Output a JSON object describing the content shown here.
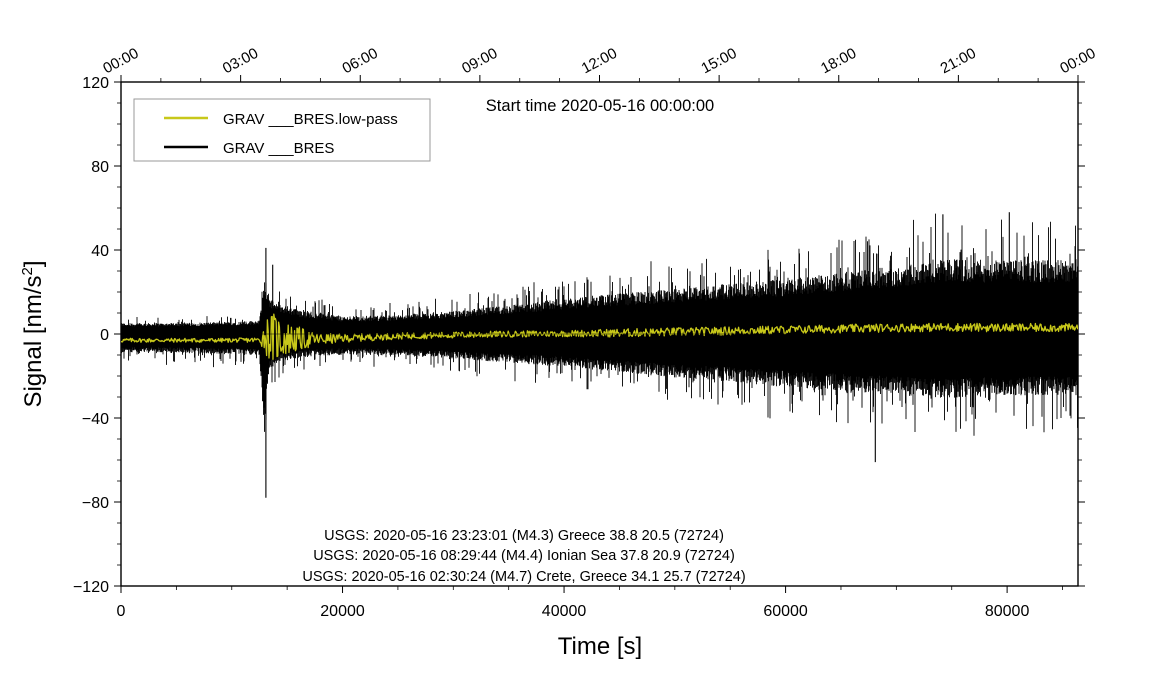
{
  "chart_data": {
    "type": "line",
    "title": "Start time 2020-05-16 00:00:00",
    "xlabel": "Time [s]",
    "ylabel": "Signal [nm/s²]",
    "xlim": [
      0,
      86400
    ],
    "ylim": [
      -120,
      120
    ],
    "x_ticks": [
      0,
      20000,
      40000,
      60000,
      80000
    ],
    "y_ticks": [
      -120,
      -80,
      -40,
      0,
      40,
      80,
      120
    ],
    "x_tick_labels": [
      "0",
      "20000",
      "40000",
      "60000",
      "80000"
    ],
    "y_tick_labels": [
      "−120",
      "−80",
      "−40",
      "0",
      "40",
      "80",
      "120"
    ],
    "top_axis": {
      "ticks": [
        0,
        10800,
        21600,
        32400,
        43200,
        54000,
        64800,
        75600,
        86400
      ],
      "labels": [
        "00:00",
        "03:00",
        "06:00",
        "09:00",
        "12:00",
        "15:00",
        "18:00",
        "21:00",
        "00:00"
      ]
    },
    "grid": false,
    "legend_position": "top-left",
    "series": [
      {
        "name": "GRAV ___BRES.low-pass",
        "color": "#c8c81a",
        "x": [
          0,
          5000,
          10000,
          12500,
          13100,
          13600,
          14200,
          15000,
          16000,
          17500,
          20000,
          25000,
          30000,
          35000,
          40000,
          45000,
          50000,
          55000,
          60000,
          65000,
          70000,
          75000,
          80000,
          86400
        ],
        "y": [
          -3,
          -3,
          -3,
          -2.8,
          -1,
          -1.5,
          -2,
          -2.2,
          -2.5,
          -2.6,
          -2,
          -1,
          -0.5,
          0,
          0.2,
          0.5,
          1,
          1.5,
          2,
          2.5,
          3,
          3.2,
          3,
          3
        ],
        "amplitude": [
          1,
          1,
          1,
          1.2,
          9,
          12,
          11,
          8,
          6,
          3,
          2,
          1.5,
          1.5,
          1.5,
          1.5,
          2,
          2,
          2,
          2,
          2,
          2,
          2,
          2,
          2
        ]
      },
      {
        "name": "GRAV ___BRES",
        "color": "#000000",
        "x": [
          0,
          5000,
          10000,
          12500,
          13000,
          13300,
          13800,
          14500,
          16000,
          18000,
          20000,
          25000,
          30000,
          35000,
          40000,
          45000,
          50000,
          55000,
          60000,
          65000,
          70000,
          75000,
          80000,
          86400
        ],
        "envelope_upper": [
          8,
          8,
          9,
          10,
          41,
          30,
          24,
          22,
          18,
          16,
          13,
          14,
          17,
          21,
          26,
          30,
          33,
          37,
          40,
          45,
          50,
          55,
          54,
          55
        ],
        "envelope_lower": [
          -14,
          -14,
          -15,
          -16,
          -78,
          -30,
          -24,
          -20,
          -18,
          -16,
          -15,
          -16,
          -18,
          -21,
          -24,
          -28,
          -32,
          -35,
          -39,
          -42,
          -45,
          -47,
          -45,
          -45
        ],
        "peaks": [
          {
            "x": 13080,
            "y": 41
          },
          {
            "x": 13080,
            "y": -78
          },
          {
            "x": 13700,
            "y": 33
          },
          {
            "x": 68100,
            "y": -61
          },
          {
            "x": 74200,
            "y": 57
          },
          {
            "x": 80200,
            "y": 58
          }
        ]
      }
    ],
    "annotations": [
      "USGS: 2020-05-16 23:23:01 (M4.3) Greece 38.8 20.5 (72724)",
      "USGS: 2020-05-16 08:29:44 (M4.4) Ionian Sea 37.8 20.9 (72724)",
      "USGS: 2020-05-16 02:30:24 (M4.7) Crete, Greece 34.1 25.7 (72724)"
    ]
  }
}
